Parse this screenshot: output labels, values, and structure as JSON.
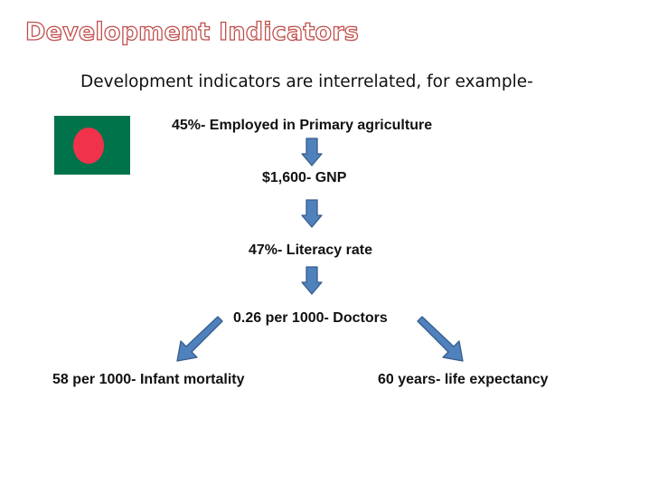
{
  "title": "Development Indicators",
  "subtitle": "Development indicators are interrelated, for example-",
  "flag": {
    "icon": "bangladesh-flag-icon",
    "field_color": "#00734a",
    "disc_color": "#f0334a"
  },
  "nodes": {
    "agriculture": "45%- Employed in Primary agriculture",
    "gnp": "$1,600- GNP",
    "literacy": "47%- Literacy rate",
    "doctors": "0.26 per 1000- Doctors",
    "infant_mortality": "58 per 1000- Infant mortality",
    "life_expectancy": "60 years- life expectancy"
  },
  "colors": {
    "title_outline": "#c0504d",
    "arrow_fill": "#4f81bd",
    "arrow_stroke": "#385d8a"
  }
}
